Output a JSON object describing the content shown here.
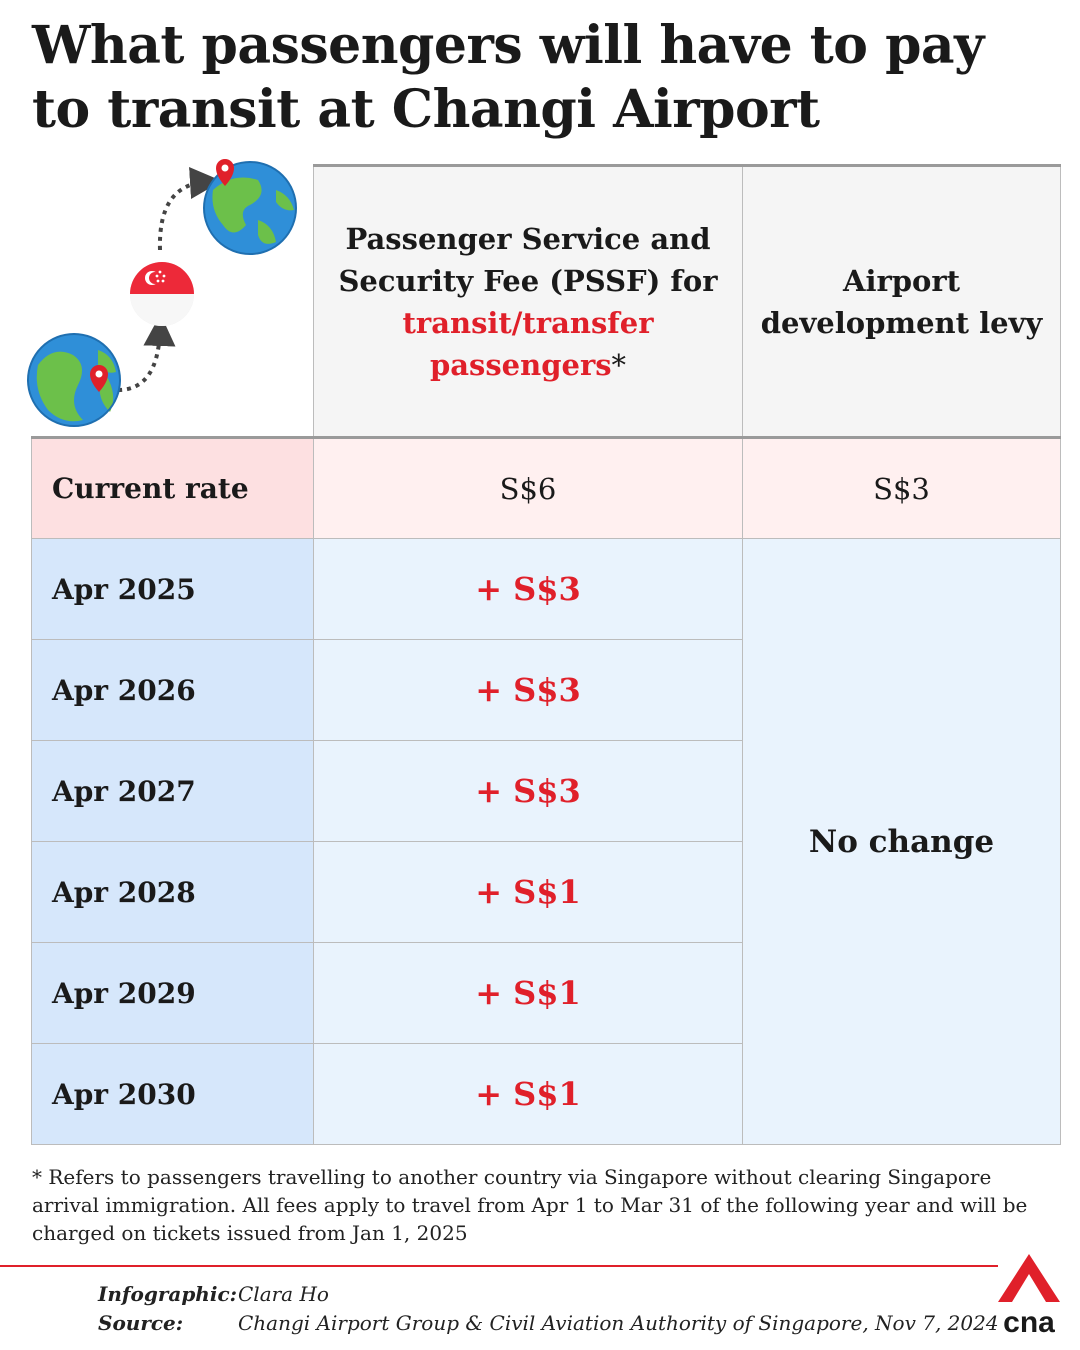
{
  "title": "What passengers will have to pay to transit at Changi Airport",
  "illustration": {
    "icons": [
      "globe-with-pin-icon",
      "singapore-flag-icon",
      "globe-with-pin-icon"
    ]
  },
  "table": {
    "headers": {
      "pssf_line1": "Passenger Service and",
      "pssf_line2": "Security Fee (PSSF) for",
      "pssf_highlight_line1": "transit/transfer",
      "pssf_highlight_line2": "passengers",
      "pssf_asterisk": "*",
      "levy_line1": "Airport",
      "levy_line2": "development levy"
    },
    "current": {
      "label": "Current rate",
      "pssf": "S$6",
      "levy": "S$3"
    },
    "rows": [
      {
        "label": "Apr 2025",
        "pssf": "+ S$3"
      },
      {
        "label": "Apr 2026",
        "pssf": "+ S$3"
      },
      {
        "label": "Apr 2027",
        "pssf": "+ S$3"
      },
      {
        "label": "Apr 2028",
        "pssf": "+ S$1"
      },
      {
        "label": "Apr 2029",
        "pssf": "+ S$1"
      },
      {
        "label": "Apr 2030",
        "pssf": "+ S$1"
      }
    ],
    "levy_change": "No change"
  },
  "footnote": "* Refers to passengers travelling to another country via Singapore without clearing Singapore arrival immigration. All fees apply to travel from Apr 1 to Mar 31 of the following year and will be charged on tickets issued from Jan 1, 2025",
  "credits": {
    "infographic_label": "Infographic:",
    "infographic_value": "Clara Ho",
    "source_label": "Source:",
    "source_value": "Changi Airport Group & Civil Aviation Authority of Singapore, Nov 7, 2024"
  },
  "logo": {
    "text": "cna",
    "icon": "cna-logo-icon"
  },
  "colors": {
    "accent_red": "#e0202a",
    "current_row_bg": "#fde0e1",
    "year_label_bg": "#d6e7fb",
    "year_value_bg": "#e9f3fd",
    "header_bg": "#f5f5f5"
  }
}
